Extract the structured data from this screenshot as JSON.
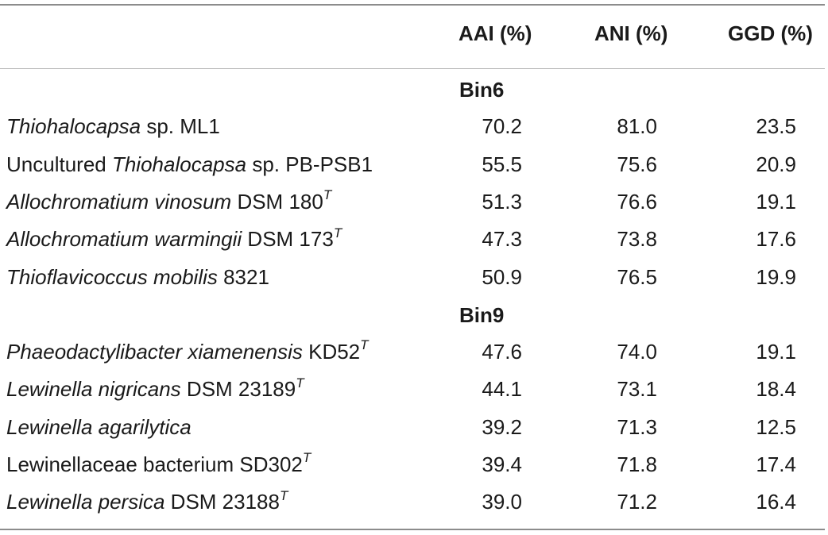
{
  "table": {
    "headers": [
      "AAI (%)",
      "ANI (%)",
      "GGD (%)"
    ],
    "groups": [
      {
        "label": "Bin6",
        "rows": [
          {
            "parts": [
              {
                "t": "Thiohalocapsa",
                "i": true
              },
              {
                "t": " sp. ML1",
                "i": false
              }
            ],
            "sup": "",
            "aai": "70.2",
            "ani": "81.0",
            "ggd": "23.5"
          },
          {
            "parts": [
              {
                "t": "Uncultured ",
                "i": false
              },
              {
                "t": "Thiohalocapsa",
                "i": true
              },
              {
                "t": " sp. PB-PSB1",
                "i": false
              }
            ],
            "sup": "",
            "aai": "55.5",
            "ani": "75.6",
            "ggd": "20.9"
          },
          {
            "parts": [
              {
                "t": "Allochromatium vinosum",
                "i": true
              },
              {
                "t": " DSM 180",
                "i": false
              }
            ],
            "sup": "T",
            "aai": "51.3",
            "ani": "76.6",
            "ggd": "19.1"
          },
          {
            "parts": [
              {
                "t": "Allochromatium warmingii",
                "i": true
              },
              {
                "t": " DSM 173",
                "i": false
              }
            ],
            "sup": "T",
            "aai": "47.3",
            "ani": "73.8",
            "ggd": "17.6"
          },
          {
            "parts": [
              {
                "t": "Thioflavicoccus mobilis",
                "i": true
              },
              {
                "t": " 8321",
                "i": false
              }
            ],
            "sup": "",
            "aai": "50.9",
            "ani": "76.5",
            "ggd": "19.9"
          }
        ]
      },
      {
        "label": "Bin9",
        "rows": [
          {
            "parts": [
              {
                "t": "Phaeodactylibacter xiamenensis",
                "i": true
              },
              {
                "t": " KD52",
                "i": false
              }
            ],
            "sup": "T",
            "aai": "47.6",
            "ani": "74.0",
            "ggd": "19.1"
          },
          {
            "parts": [
              {
                "t": "Lewinella nigricans",
                "i": true
              },
              {
                "t": " DSM 23189",
                "i": false
              }
            ],
            "sup": "T",
            "aai": "44.1",
            "ani": "73.1",
            "ggd": "18.4"
          },
          {
            "parts": [
              {
                "t": "Lewinella agarilytica",
                "i": true
              }
            ],
            "sup": "",
            "aai": "39.2",
            "ani": "71.3",
            "ggd": "12.5"
          },
          {
            "parts": [
              {
                "t": "Lewinellaceae bacterium SD302",
                "i": false
              }
            ],
            "sup": "T",
            "aai": "39.4",
            "ani": "71.8",
            "ggd": "17.4"
          },
          {
            "parts": [
              {
                "t": "Lewinella persica",
                "i": true
              },
              {
                "t": " DSM 23188",
                "i": false
              }
            ],
            "sup": "T",
            "aai": "39.0",
            "ani": "71.2",
            "ggd": "16.4"
          }
        ]
      }
    ]
  }
}
